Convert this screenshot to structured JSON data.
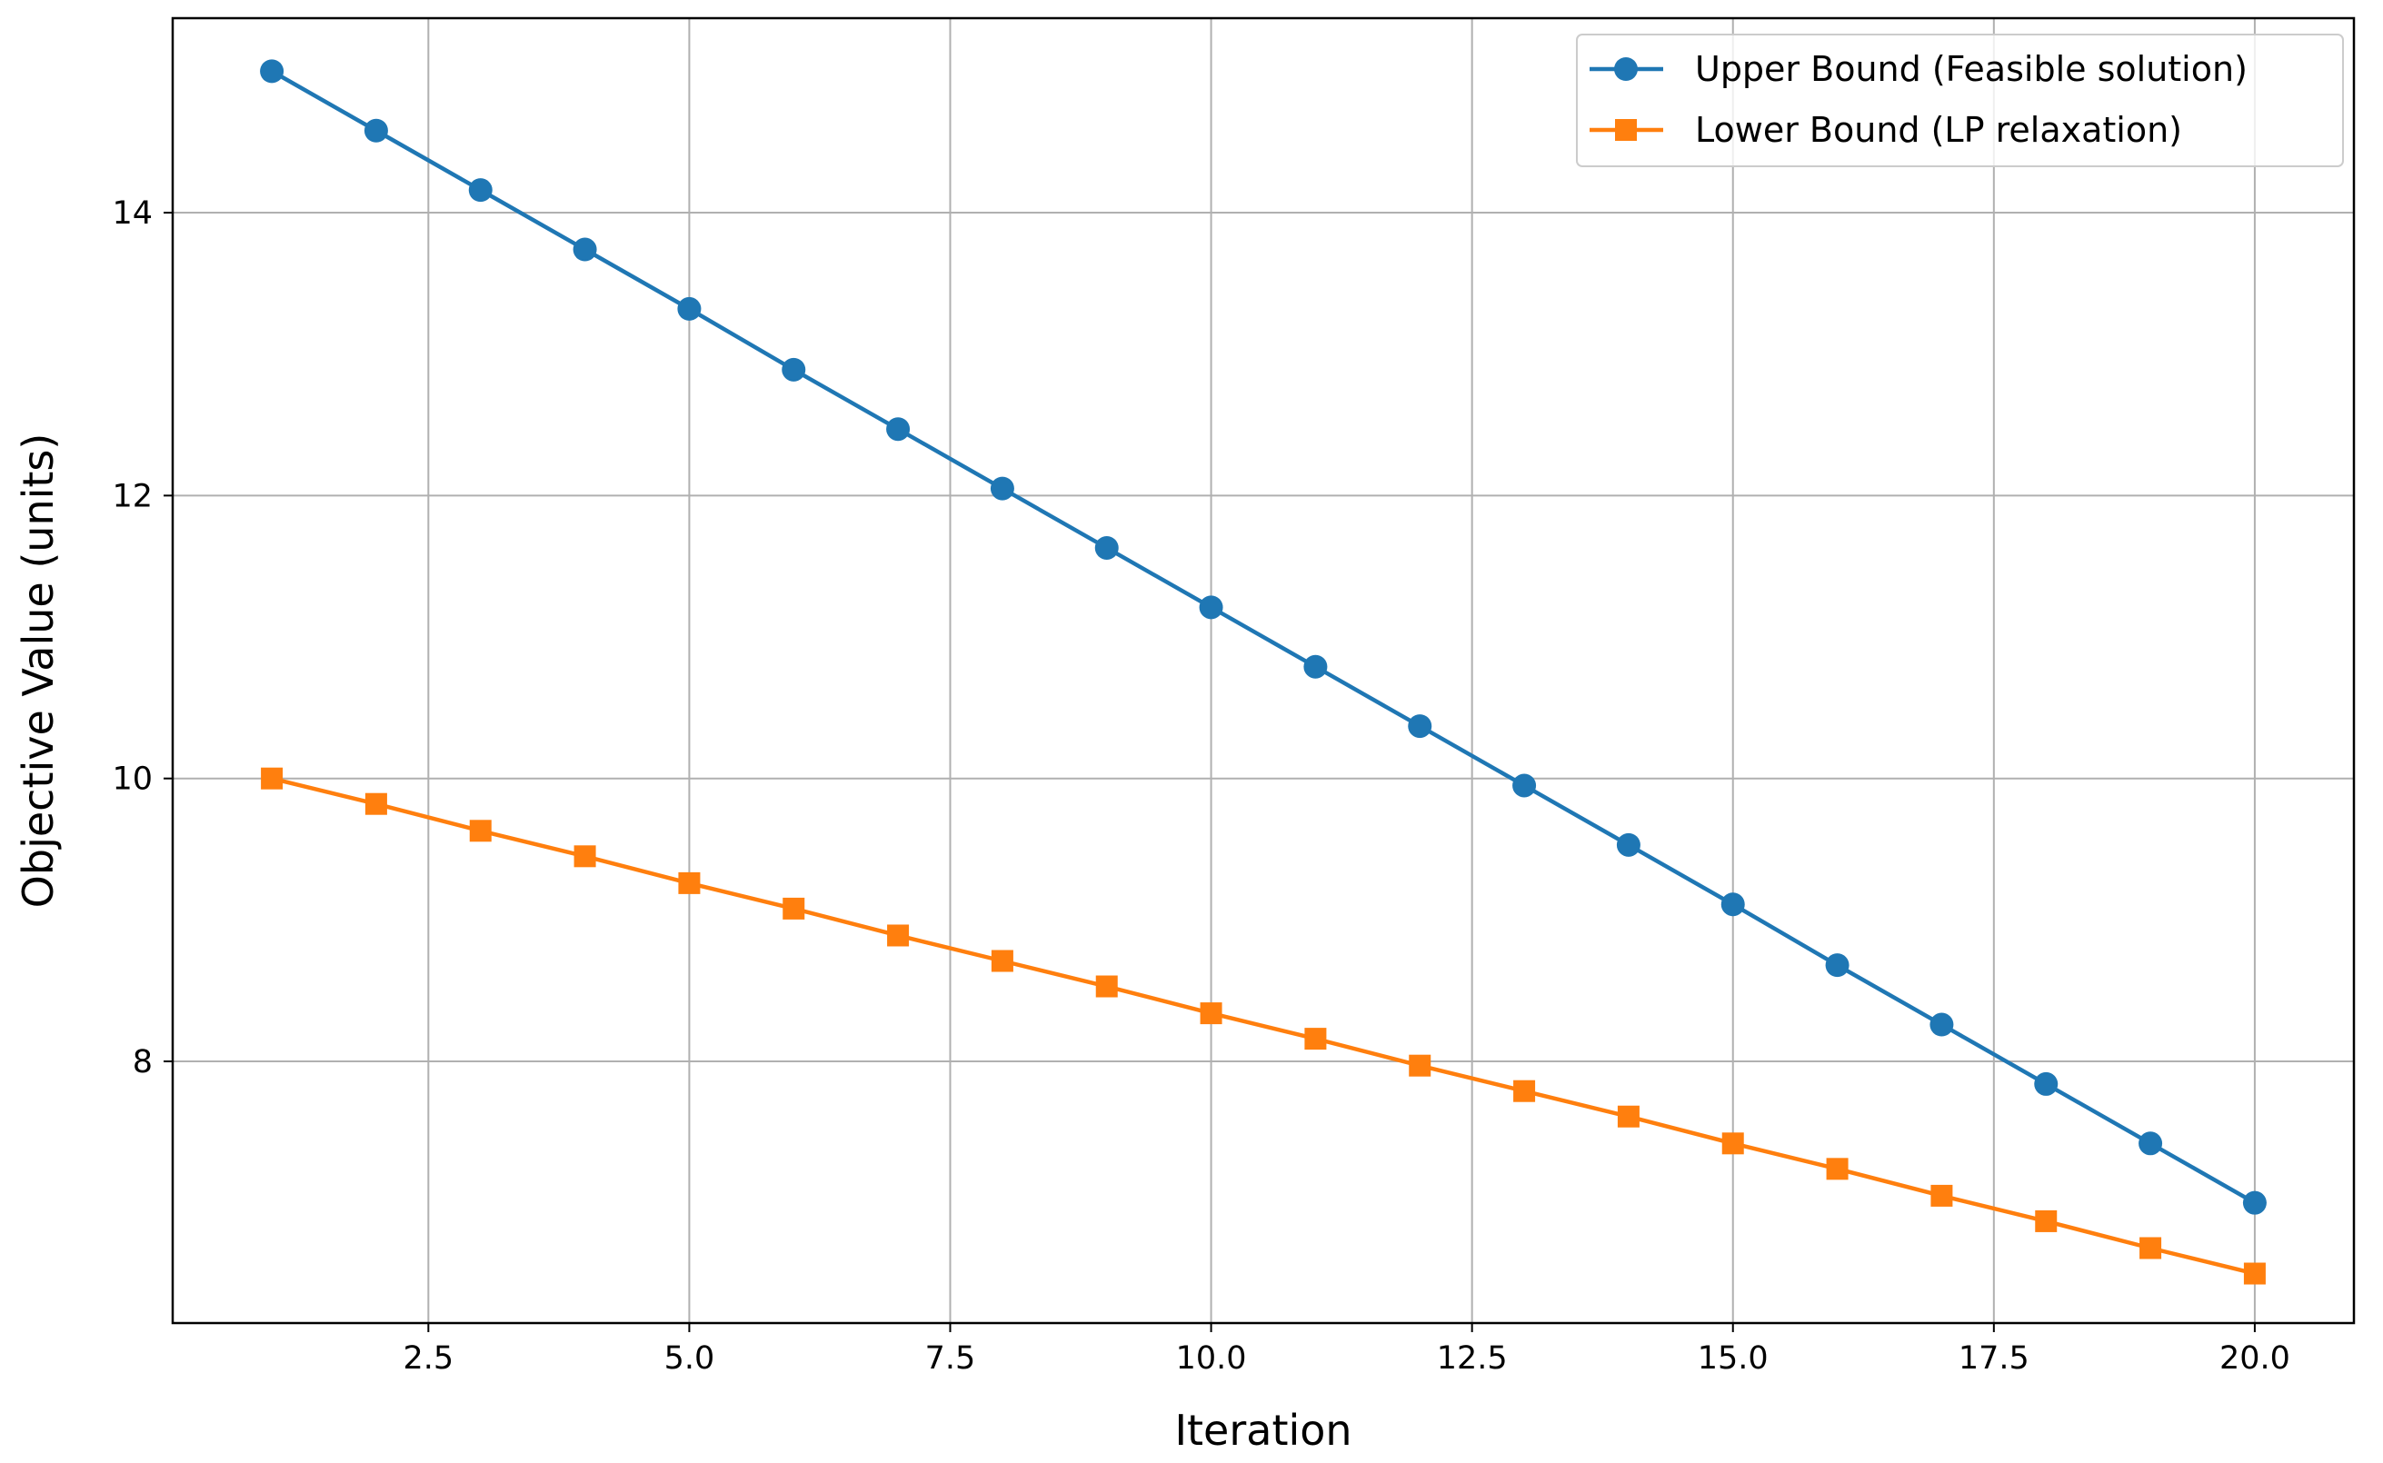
{
  "chart_data": {
    "type": "line",
    "title": "",
    "xlabel": "Iteration",
    "ylabel": "Objective Value (units)",
    "xlim": [
      0.05,
      20.95
    ],
    "ylim": [
      6.15,
      15.375
    ],
    "xticks": [
      2.5,
      5.0,
      7.5,
      10.0,
      12.5,
      15.0,
      17.5,
      20.0
    ],
    "xtick_labels": [
      "2.5",
      "5.0",
      "7.5",
      "10.0",
      "12.5",
      "15.0",
      "17.5",
      "20.0"
    ],
    "yticks": [
      8,
      10,
      12,
      14
    ],
    "ytick_labels": [
      "8",
      "10",
      "12",
      "14"
    ],
    "grid": true,
    "legend_position": "top-right",
    "x": [
      1,
      2,
      3,
      4,
      5,
      6,
      7,
      8,
      9,
      10,
      11,
      12,
      13,
      14,
      15,
      16,
      17,
      18,
      19,
      20
    ],
    "series": [
      {
        "name": "Upper Bound (Feasible solution)",
        "color": "#1f77b4",
        "marker": "circle",
        "values": [
          15.0,
          14.58,
          14.16,
          13.74,
          13.32,
          12.89,
          12.47,
          12.05,
          11.63,
          11.21,
          10.79,
          10.37,
          9.95,
          9.53,
          9.11,
          8.68,
          8.26,
          7.84,
          7.42,
          7.0
        ]
      },
      {
        "name": "Lower Bound (LP relaxation)",
        "color": "#ff7f0e",
        "marker": "square",
        "values": [
          10.0,
          9.82,
          9.63,
          9.45,
          9.26,
          9.08,
          8.89,
          8.71,
          8.53,
          8.34,
          8.16,
          7.97,
          7.79,
          7.61,
          7.42,
          7.24,
          7.05,
          6.87,
          6.68,
          6.5
        ]
      }
    ]
  }
}
